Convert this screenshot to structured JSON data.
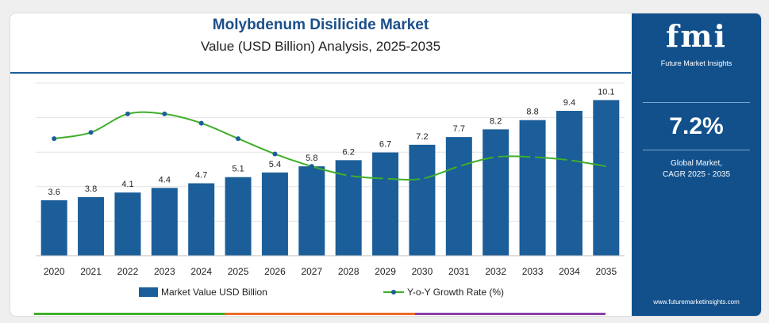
{
  "header": {
    "title": "Molybdenum Disilicide Market",
    "subtitle": "Value (USD Billion) Analysis, 2025-2035"
  },
  "sidebar": {
    "logo": "fmi",
    "brand": "Future Market Insights",
    "cagr_value": "7.2%",
    "cagr_line1": "Global Market,",
    "cagr_line2": "CAGR 2025 - 2035",
    "website": "www.futuremarketinsights.com"
  },
  "colors": {
    "bar": "#1b5e99",
    "line": "#3fae2a",
    "sidebar": "#12508c",
    "title": "#1b4f8a",
    "strip": [
      "#3fae2a",
      "#ef6c2a",
      "#8a3fa8"
    ]
  },
  "chart_data": {
    "type": "bar",
    "categories": [
      "2020",
      "2021",
      "2022",
      "2023",
      "2024",
      "2025",
      "2026",
      "2027",
      "2028",
      "2029",
      "2030",
      "2031",
      "2032",
      "2033",
      "2034",
      "2035"
    ],
    "series": [
      {
        "name": "Market Value USD Billion",
        "type": "bar",
        "values": [
          3.6,
          3.8,
          4.1,
          4.4,
          4.7,
          5.1,
          5.4,
          5.8,
          6.2,
          6.7,
          7.2,
          7.7,
          8.2,
          8.8,
          9.4,
          10.1
        ]
      },
      {
        "name": "Y-o-Y Growth Rate (%)",
        "type": "line",
        "values": [
          7.8,
          8.0,
          8.6,
          8.6,
          8.3,
          7.8,
          7.3,
          6.9,
          6.6,
          6.5,
          6.5,
          6.9,
          7.2,
          7.2,
          7.1,
          6.9
        ]
      }
    ],
    "bar_ylim": [
      0,
      11.2
    ],
    "line_ylim": [
      4.0,
      9.6
    ],
    "legend_position": "bottom",
    "grid": true
  }
}
